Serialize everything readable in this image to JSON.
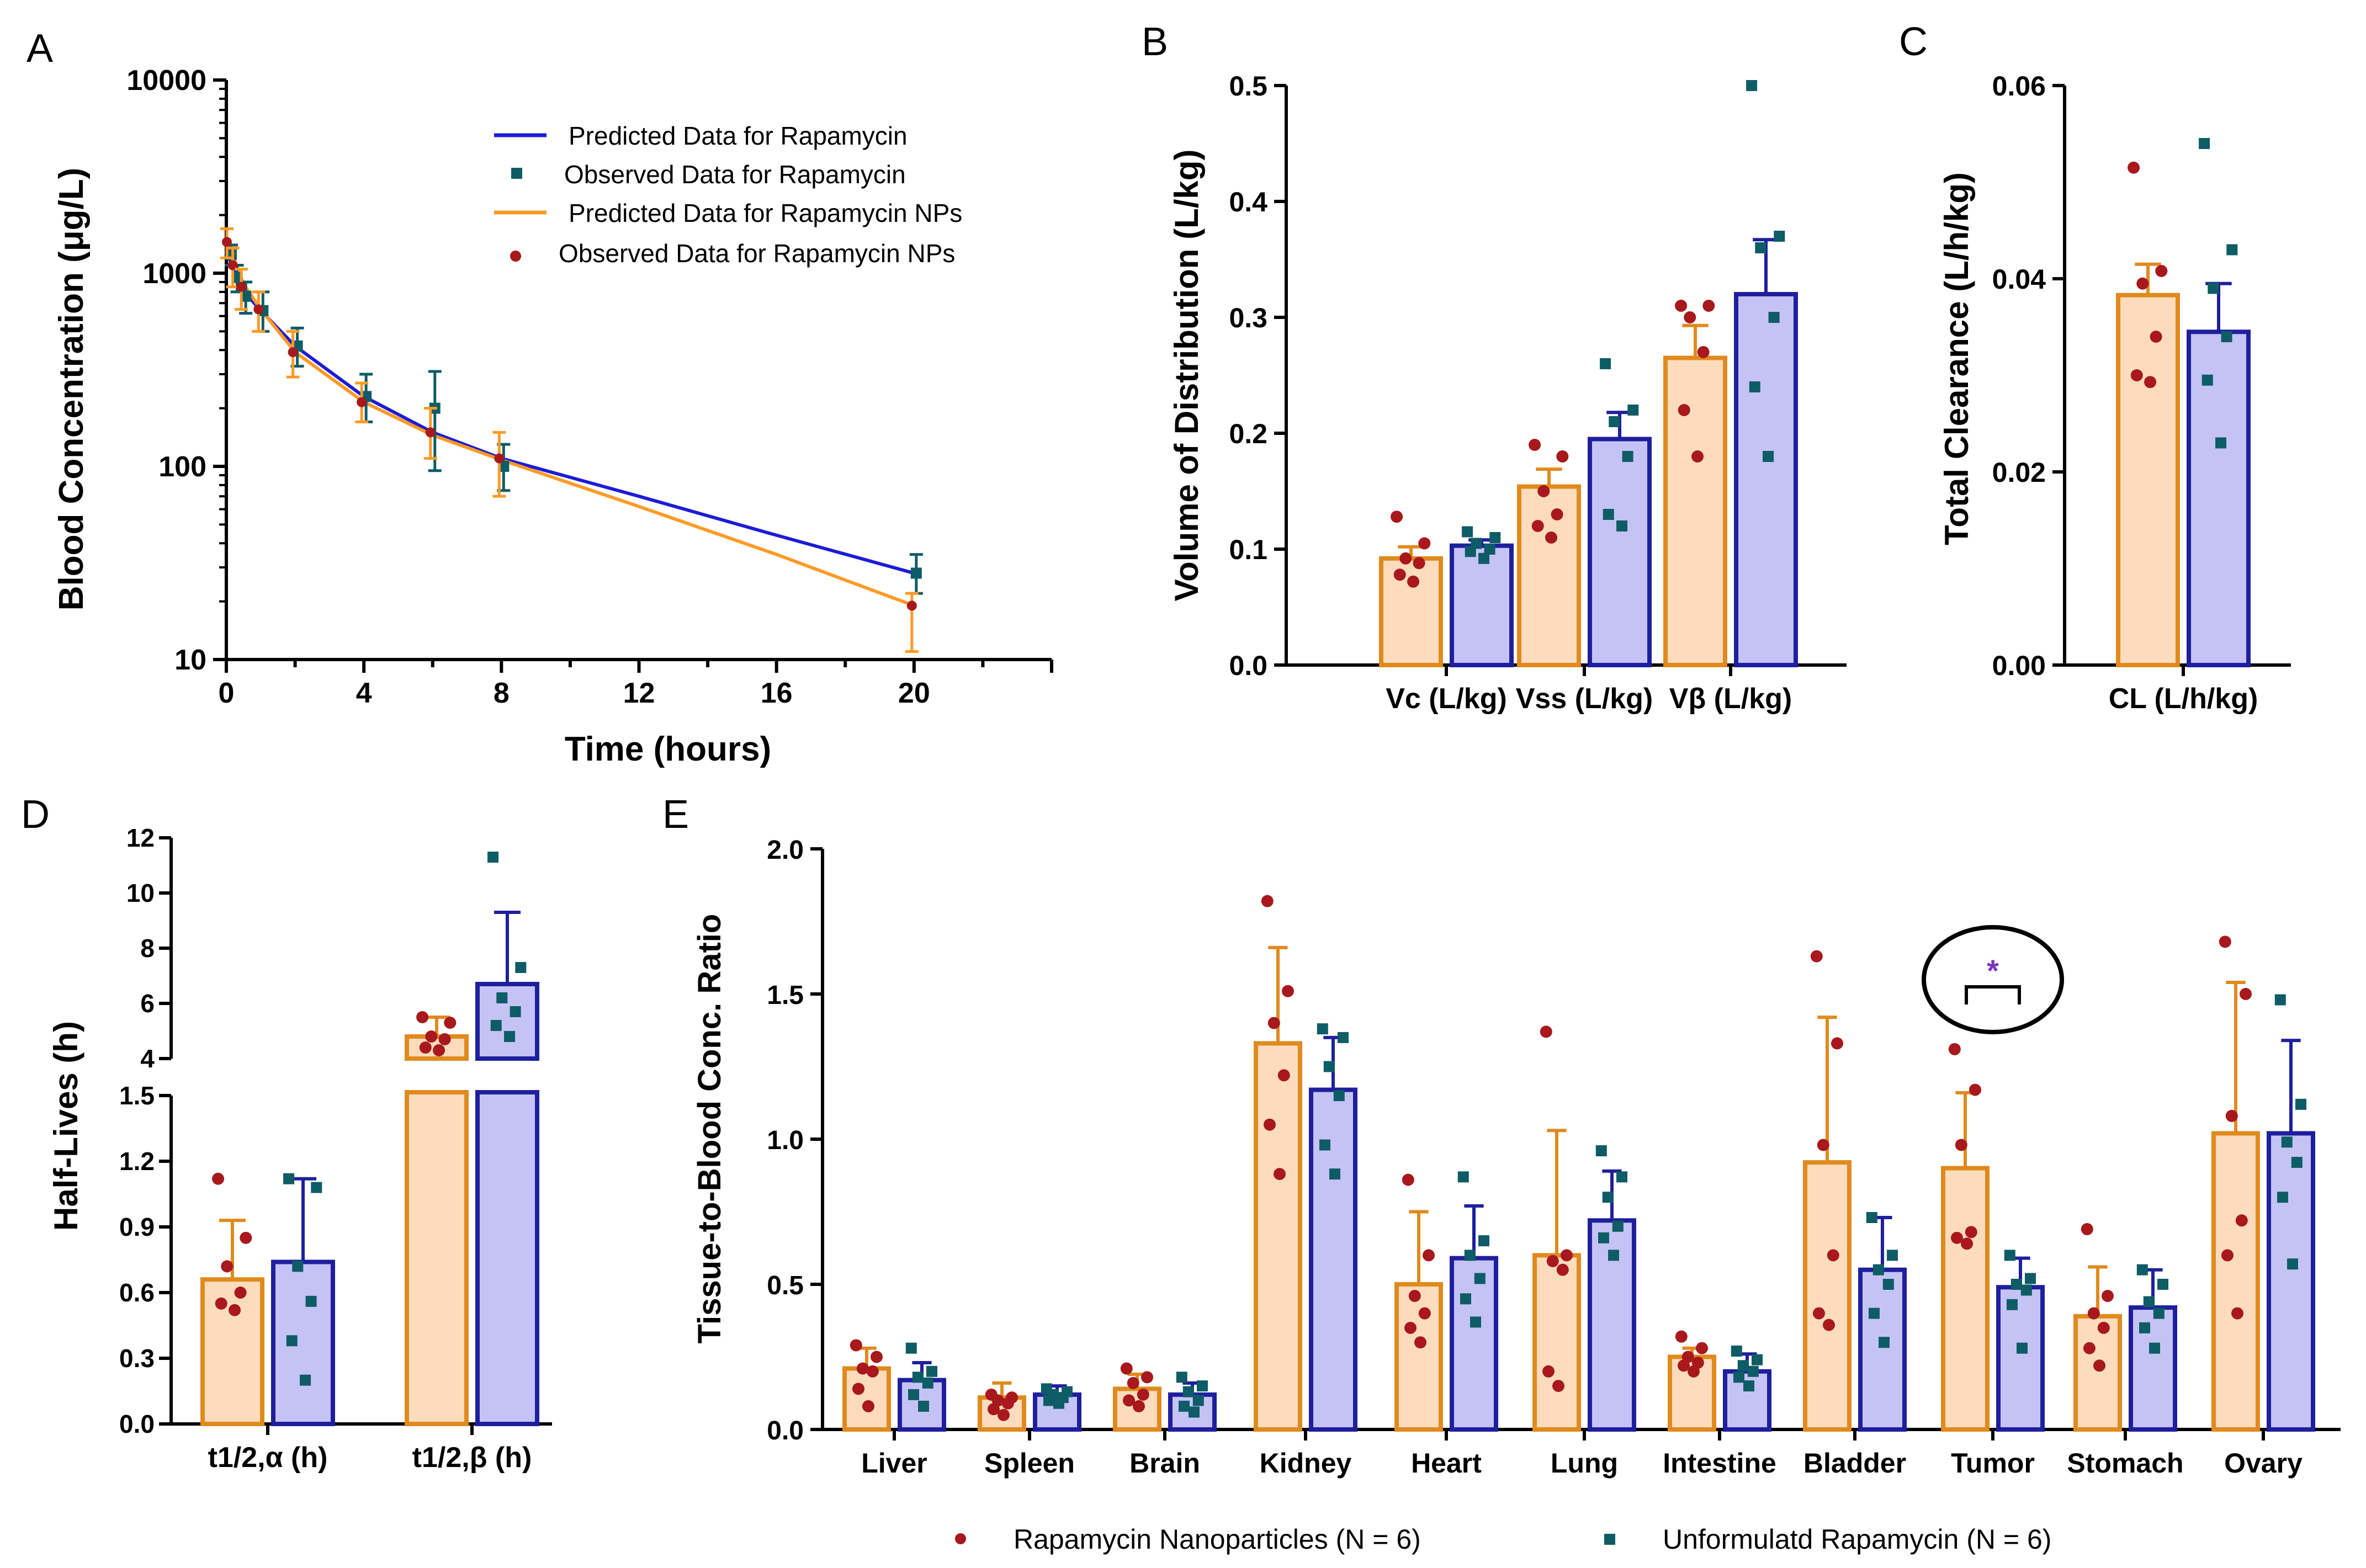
{
  "colors": {
    "orange": "#e08a1e",
    "orange_fill": "#fcdcbd",
    "blue": "#1f1f9e",
    "blue_fill": "#c5c3f5",
    "red_dot": "#a8181c",
    "teal_square": "#0e5c66",
    "line_blue": "#1c1cd6",
    "line_orange": "#ff9a26",
    "star": "#7a35c2"
  },
  "chart_data": [
    {
      "id": "A",
      "panel_label": "A",
      "type": "line",
      "xlabel": "Time (hours)",
      "ylabel": "Blood Concentration (μg/L)",
      "yscale": "log",
      "xlim": [
        0,
        24
      ],
      "ylim": [
        10,
        10000
      ],
      "xticks": [
        0,
        4,
        8,
        12,
        16,
        20
      ],
      "yticks": [
        10,
        100,
        1000,
        10000
      ],
      "xtick_labels": [
        "0",
        "4",
        "8",
        "12",
        "16",
        "20"
      ],
      "ytick_labels": [
        "10",
        "100",
        "1000",
        "10000"
      ],
      "legend": [
        "Predicted Data for Rapamycin",
        "Observed Data for Rapamycin",
        "Predicted Data for Rapamycin NPs",
        "Observed Data for Rapamycin NPs"
      ],
      "series": [
        {
          "name": "Predicted Data for Rapamycin",
          "kind": "line",
          "x": [
            0,
            0.25,
            0.5,
            1,
            2,
            4,
            6,
            8,
            12,
            16,
            20
          ],
          "values": [
            1300,
            1000,
            810,
            640,
            420,
            230,
            150,
            110,
            70,
            44,
            28
          ]
        },
        {
          "name": "Predicted Data for Rapamycin NPs",
          "kind": "line",
          "x": [
            0,
            0.25,
            0.5,
            1,
            2,
            4,
            6,
            8,
            12,
            16,
            20
          ],
          "values": [
            1500,
            1150,
            880,
            650,
            390,
            215,
            145,
            108,
            62,
            35,
            19
          ]
        },
        {
          "name": "Observed Data for Rapamycin",
          "kind": "points",
          "x": [
            0.08,
            0.25,
            0.5,
            1,
            2,
            4,
            6,
            8,
            20
          ],
          "values": [
            1250,
            950,
            760,
            640,
            420,
            230,
            200,
            100,
            28
          ],
          "err_low": [
            1100,
            800,
            620,
            500,
            330,
            170,
            95,
            75,
            22
          ],
          "err_high": [
            1400,
            1100,
            900,
            800,
            520,
            300,
            310,
            130,
            35
          ]
        },
        {
          "name": "Observed Data for Rapamycin NPs",
          "kind": "points",
          "x": [
            0.08,
            0.25,
            0.5,
            1,
            2,
            4,
            6,
            8,
            20
          ],
          "values": [
            1450,
            1100,
            850,
            650,
            390,
            215,
            150,
            110,
            19
          ],
          "err_low": [
            1200,
            850,
            650,
            500,
            290,
            170,
            110,
            70,
            11
          ],
          "err_high": [
            1700,
            1350,
            1050,
            800,
            500,
            270,
            200,
            150,
            22
          ]
        }
      ]
    },
    {
      "id": "B",
      "panel_label": "B",
      "type": "bar",
      "ylabel": "Volume of Distribution (L/kg)",
      "categories": [
        "Vc (L/kg)",
        "Vss (L/kg)",
        "Vβ (L/kg)"
      ],
      "ylim": [
        0,
        0.5
      ],
      "yticks": [
        0,
        0.1,
        0.2,
        0.3,
        0.4,
        0.5
      ],
      "ytick_labels": [
        "0.0",
        "0.1",
        "0.2",
        "0.3",
        "0.4",
        "0.5"
      ],
      "series": [
        {
          "name": "Rapamycin Nanoparticles",
          "values": [
            0.092,
            0.154,
            0.265
          ],
          "err": [
            0.01,
            0.015,
            0.028
          ],
          "points": [
            [
              0.128,
              0.105,
              0.092,
              0.088,
              0.078,
              0.072
            ],
            [
              0.19,
              0.18,
              0.15,
              0.13,
              0.12,
              0.11
            ],
            [
              0.31,
              0.31,
              0.3,
              0.27,
              0.22,
              0.18
            ]
          ]
        },
        {
          "name": "Unformulatd Rapamycin",
          "values": [
            0.103,
            0.195,
            0.32
          ],
          "err": [
            0.005,
            0.023,
            0.047
          ],
          "points": [
            [
              0.115,
              0.11,
              0.105,
              0.1,
              0.098,
              0.092
            ],
            [
              0.26,
              0.22,
              0.21,
              0.18,
              0.13,
              0.12
            ],
            [
              0.5,
              0.37,
              0.36,
              0.3,
              0.24,
              0.18
            ]
          ]
        }
      ]
    },
    {
      "id": "C",
      "panel_label": "C",
      "type": "bar",
      "ylabel": "Total  Clearance (L/h/kg)",
      "categories": [
        "CL (L/h/kg)"
      ],
      "ylim": [
        0,
        0.06
      ],
      "yticks": [
        0,
        0.02,
        0.04,
        0.06
      ],
      "ytick_labels": [
        "0.00",
        "0.02",
        "0.04",
        "0.06"
      ],
      "series": [
        {
          "name": "Rapamycin Nanoparticles",
          "values": [
            0.0383
          ],
          "err": [
            0.0032
          ],
          "points": [
            [
              0.0515,
              0.0408,
              0.0395,
              0.034,
              0.03,
              0.0293
            ]
          ]
        },
        {
          "name": "Unformulatd Rapamycin",
          "values": [
            0.0345
          ],
          "err": [
            0.005
          ],
          "points": [
            [
              0.054,
              0.043,
              0.039,
              0.034,
              0.0295,
              0.023
            ]
          ]
        }
      ]
    },
    {
      "id": "D",
      "panel_label": "D",
      "type": "bar",
      "ylabel": "Half-Lives (h)",
      "categories": [
        "t1/2,α (h)",
        "t1/2,β (h)"
      ],
      "broken_axis": {
        "lower": [
          0,
          1.5
        ],
        "upper": [
          4,
          12
        ]
      },
      "yticks_lower": [
        0,
        0.3,
        0.6,
        0.9,
        1.2,
        1.5
      ],
      "ytick_labels_lower": [
        "0.0",
        "0.3",
        "0.6",
        "0.9",
        "1.2",
        "1.5"
      ],
      "yticks_upper": [
        4,
        6,
        8,
        10,
        12
      ],
      "ytick_labels_upper": [
        "4",
        "6",
        "8",
        "10",
        "12"
      ],
      "series": [
        {
          "name": "Rapamycin Nanoparticles",
          "values": [
            0.66,
            4.8
          ],
          "err": [
            0.27,
            0.7
          ],
          "points": [
            [
              1.12,
              0.85,
              0.72,
              0.6,
              0.55,
              0.52
            ],
            [
              5.5,
              5.3,
              4.8,
              4.7,
              4.4,
              4.3
            ]
          ]
        },
        {
          "name": "Unformulatd Rapamycin",
          "values": [
            0.74,
            6.7
          ],
          "err": [
            0.38,
            2.6
          ],
          "points": [
            [
              1.12,
              1.08,
              0.72,
              0.56,
              0.38,
              0.2
            ],
            [
              11.3,
              7.3,
              6.2,
              5.7,
              5.2,
              4.8
            ]
          ]
        }
      ]
    },
    {
      "id": "E",
      "panel_label": "E",
      "type": "bar",
      "ylabel": "Tissue-to-Blood Conc. Ratio",
      "categories": [
        "Liver",
        "Spleen",
        "Brain",
        "Kidney",
        "Heart",
        "Lung",
        "Intestine",
        "Bladder",
        "Tumor",
        "Stomach",
        "Ovary"
      ],
      "ylim": [
        0,
        2.0
      ],
      "yticks": [
        0,
        0.5,
        1.0,
        1.5,
        2.0
      ],
      "ytick_labels": [
        "0.0",
        "0.5",
        "1.0",
        "1.5",
        "2.0"
      ],
      "legend": [
        "Rapamycin Nanoparticles (N = 6)",
        "Unformulatd Rapamycin (N = 6)"
      ],
      "annotation": {
        "text": "*",
        "category": "Tumor"
      },
      "series": [
        {
          "name": "Rapamycin Nanoparticles (N = 6)",
          "values": [
            0.21,
            0.11,
            0.14,
            1.33,
            0.5,
            0.6,
            0.25,
            0.92,
            0.9,
            0.39,
            1.02
          ],
          "err": [
            0.07,
            0.05,
            0.05,
            0.33,
            0.25,
            0.43,
            0.03,
            0.5,
            0.26,
            0.17,
            0.52
          ],
          "points": [
            [
              0.29,
              0.25,
              0.21,
              0.2,
              0.14,
              0.08
            ],
            [
              0.12,
              0.11,
              0.1,
              0.09,
              0.07,
              0.05
            ],
            [
              0.21,
              0.18,
              0.16,
              0.12,
              0.1,
              0.08
            ],
            [
              1.82,
              1.51,
              1.4,
              1.22,
              1.05,
              0.88
            ],
            [
              0.86,
              0.6,
              0.46,
              0.4,
              0.35,
              0.3
            ],
            [
              1.37,
              0.6,
              0.58,
              0.55,
              0.2,
              0.15
            ],
            [
              0.32,
              0.28,
              0.25,
              0.23,
              0.22,
              0.2
            ],
            [
              1.63,
              1.33,
              0.98,
              0.6,
              0.4,
              0.36
            ],
            [
              1.31,
              1.17,
              0.98,
              0.68,
              0.66,
              0.64
            ],
            [
              0.69,
              0.46,
              0.4,
              0.35,
              0.28,
              0.22
            ],
            [
              1.68,
              1.5,
              1.08,
              0.72,
              0.6,
              0.4
            ]
          ]
        },
        {
          "name": "Unformulatd Rapamycin (N = 6)",
          "values": [
            0.17,
            0.12,
            0.12,
            1.17,
            0.59,
            0.72,
            0.2,
            0.55,
            0.49,
            0.42,
            1.02
          ],
          "err": [
            0.06,
            0.03,
            0.04,
            0.18,
            0.18,
            0.17,
            0.06,
            0.18,
            0.1,
            0.13,
            0.32
          ],
          "points": [
            [
              0.28,
              0.2,
              0.18,
              0.16,
              0.12,
              0.08
            ],
            [
              0.14,
              0.13,
              0.12,
              0.11,
              0.1,
              0.09
            ],
            [
              0.18,
              0.15,
              0.13,
              0.1,
              0.08,
              0.06
            ],
            [
              1.38,
              1.35,
              1.25,
              1.15,
              0.98,
              0.88
            ],
            [
              0.87,
              0.65,
              0.6,
              0.52,
              0.45,
              0.37
            ],
            [
              0.96,
              0.87,
              0.8,
              0.7,
              0.66,
              0.6
            ],
            [
              0.27,
              0.24,
              0.22,
              0.2,
              0.18,
              0.15
            ],
            [
              0.73,
              0.6,
              0.55,
              0.5,
              0.4,
              0.3
            ],
            [
              0.6,
              0.52,
              0.5,
              0.48,
              0.43,
              0.28
            ],
            [
              0.55,
              0.5,
              0.44,
              0.4,
              0.35,
              0.28
            ],
            [
              1.48,
              1.12,
              0.99,
              0.92,
              0.8,
              0.57
            ]
          ]
        }
      ]
    }
  ]
}
